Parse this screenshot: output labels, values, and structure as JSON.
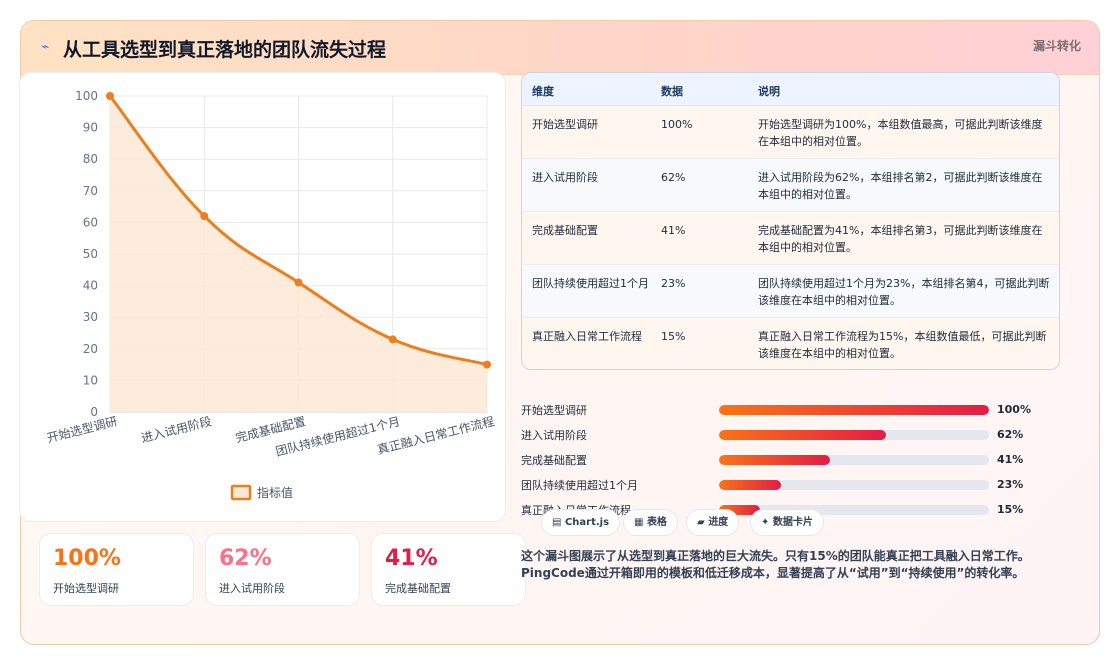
{
  "header": {
    "icon": "spark-icon",
    "title": "从工具选型到真正落地的团队流失过程",
    "tag": "漏斗转化"
  },
  "chart_data": {
    "type": "line",
    "categories": [
      "开始选型调研",
      "进入试用阶段",
      "完成基础配置",
      "团队持续使用超过1个月",
      "真正融入日常工作流程"
    ],
    "series": [
      {
        "name": "指标值",
        "values": [
          100,
          62,
          41,
          23,
          15
        ]
      }
    ],
    "ylim": [
      0,
      100
    ],
    "yticks": [
      0,
      10,
      20,
      30,
      40,
      50,
      60,
      70,
      80,
      90,
      100
    ],
    "area_fill": true,
    "grid": true,
    "legend": "bottom",
    "colors": {
      "line": "#ef7d1c",
      "area": "#fde7d6"
    }
  },
  "stats": [
    {
      "value": "100%",
      "label": "开始选型调研",
      "color": "#f97316"
    },
    {
      "value": "62%",
      "label": "进入试用阶段",
      "color": "#fb7185"
    },
    {
      "value": "41%",
      "label": "完成基础配置",
      "color": "#e11d48"
    }
  ],
  "table": {
    "headers": [
      "维度",
      "数据",
      "说明"
    ],
    "rows": [
      {
        "dim": "开始选型调研",
        "data": "100%",
        "desc": "开始选型调研为100%，本组数值最高，可据此判断该维度在本组中的相对位置。"
      },
      {
        "dim": "进入试用阶段",
        "data": "62%",
        "desc": "进入试用阶段为62%，本组排名第2，可据此判断该维度在本组中的相对位置。"
      },
      {
        "dim": "完成基础配置",
        "data": "41%",
        "desc": "完成基础配置为41%，本组排名第3，可据此判断该维度在本组中的相对位置。"
      },
      {
        "dim": "团队持续使用超过1个月",
        "data": "23%",
        "desc": "团队持续使用超过1个月为23%，本组排名第4，可据此判断该维度在本组中的相对位置。"
      },
      {
        "dim": "真正融入日常工作流程",
        "data": "15%",
        "desc": "真正融入日常工作流程为15%，本组数值最低，可据此判断该维度在本组中的相对位置。"
      }
    ]
  },
  "bars": [
    {
      "label": "开始选型调研",
      "value": 100,
      "pct": "100%"
    },
    {
      "label": "进入试用阶段",
      "value": 62,
      "pct": "62%"
    },
    {
      "label": "完成基础配置",
      "value": 41,
      "pct": "41%"
    },
    {
      "label": "团队持续使用超过1个月",
      "value": 23,
      "pct": "23%"
    },
    {
      "label": "真正融入日常工作流程",
      "value": 15,
      "pct": "15%"
    }
  ],
  "chips": [
    {
      "icon": "chart-icon",
      "glyph": "▤",
      "label": "Chart.js"
    },
    {
      "icon": "table-icon",
      "glyph": "▦",
      "label": "表格"
    },
    {
      "icon": "progress-icon",
      "glyph": "▰",
      "label": "进度"
    },
    {
      "icon": "card-icon",
      "glyph": "✦",
      "label": "数据卡片"
    }
  ],
  "description": "这个漏斗图展示了从选型到真正落地的巨大流失。只有15%的团队能真正把工具融入日常工作。PingCode通过开箱即用的模板和低迁移成本，显著提高了从“试用”到“持续使用”的转化率。"
}
